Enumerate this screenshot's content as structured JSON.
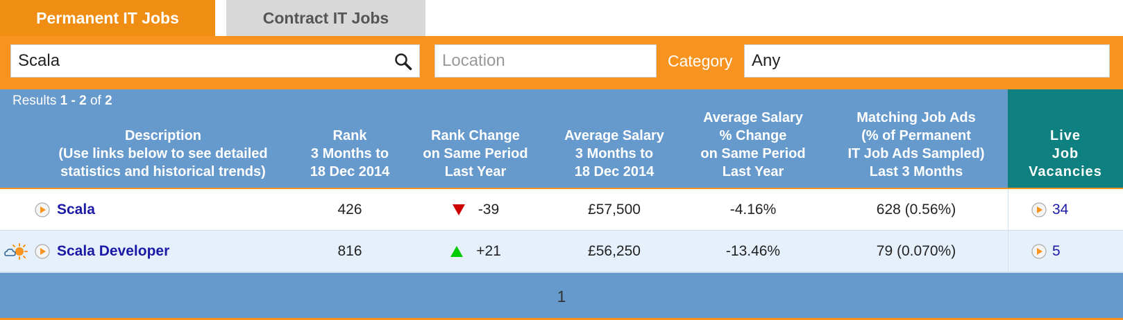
{
  "tabs": {
    "permanent": "Permanent IT Jobs",
    "contract": "Contract IT Jobs"
  },
  "search": {
    "keyword_value": "Scala",
    "location_placeholder": "Location",
    "category_label": "Category",
    "category_value": "Any"
  },
  "results": {
    "prefix": "Results",
    "range": "1 - 2",
    "of_label": "of",
    "total": "2"
  },
  "columns": {
    "description": [
      "Description",
      "(Use links below to see detailed",
      "statistics and historical trends)"
    ],
    "rank": [
      "Rank",
      "3 Months to",
      "18 Dec 2014"
    ],
    "rank_change": [
      "Rank Change",
      "on Same Period",
      "Last Year"
    ],
    "avg_salary": [
      "Average Salary",
      "3 Months to",
      "18 Dec 2014"
    ],
    "salary_change": [
      "Average Salary",
      "% Change",
      "on Same Period",
      "Last Year"
    ],
    "matching_ads": [
      "Matching Job Ads",
      "(% of Permanent",
      "IT Job Ads Sampled)",
      "Last 3 Months"
    ],
    "live": [
      "Live",
      "Job",
      "Vacancies"
    ]
  },
  "rows": [
    {
      "description": "Scala",
      "rank": "426",
      "rank_change": "-39",
      "rank_direction": "down",
      "avg_salary": "£57,500",
      "salary_change": "-4.16%",
      "matching_ads": "628 (0.56%)",
      "live": "34"
    },
    {
      "description": "Scala Developer",
      "rank": "816",
      "rank_change": "+21",
      "rank_direction": "up",
      "avg_salary": "£56,250",
      "salary_change": "-13.46%",
      "matching_ads": "79 (0.070%)",
      "live": "5"
    }
  ],
  "pagination": {
    "current": "1"
  },
  "colors": {
    "orange": "#f7931e",
    "header_blue": "#6699cc",
    "live_teal": "#0f8080",
    "down_red": "#cc0000",
    "up_green": "#00cc00"
  }
}
